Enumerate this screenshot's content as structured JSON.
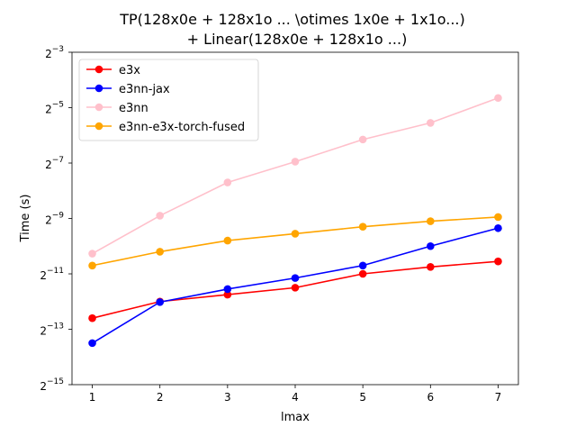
{
  "chart_data": {
    "type": "line",
    "title_line1": "TP(128x0e + 128x1o ... \\otimes 1x0e + 1x1o...)",
    "title_line2": "+ Linear(128x0e + 128x1o ...)",
    "xlabel": "lmax",
    "ylabel": "Time (s)",
    "x": [
      1,
      2,
      3,
      4,
      5,
      6,
      7
    ],
    "xlim": [
      0.7,
      7.3
    ],
    "yscale": "log2",
    "ylim_exp": [
      -15,
      -3
    ],
    "yticks_exp": [
      -15,
      -13,
      -11,
      -9,
      -7,
      -5,
      -3
    ],
    "ytick_base": "2",
    "legend_position": "upper-left",
    "grid": false,
    "series": [
      {
        "name": "e3x",
        "color": "#ff0000",
        "values_log2": [
          -12.6,
          -12.0,
          -11.75,
          -11.5,
          -11.0,
          -10.75,
          -10.55
        ]
      },
      {
        "name": "e3nn-jax",
        "color": "#0000ff",
        "values_log2": [
          -13.5,
          -12.02,
          -11.55,
          -11.15,
          -10.7,
          -10.0,
          -9.35
        ]
      },
      {
        "name": "e3nn",
        "color": "#ffc0cb",
        "values_log2": [
          -10.27,
          -8.9,
          -7.7,
          -6.95,
          -6.15,
          -5.55,
          -4.65
        ]
      },
      {
        "name": "e3nn-e3x-torch-fused",
        "color": "#ffa500",
        "values_log2": [
          -10.7,
          -10.2,
          -9.8,
          -9.55,
          -9.3,
          -9.1,
          -8.95
        ]
      }
    ]
  }
}
